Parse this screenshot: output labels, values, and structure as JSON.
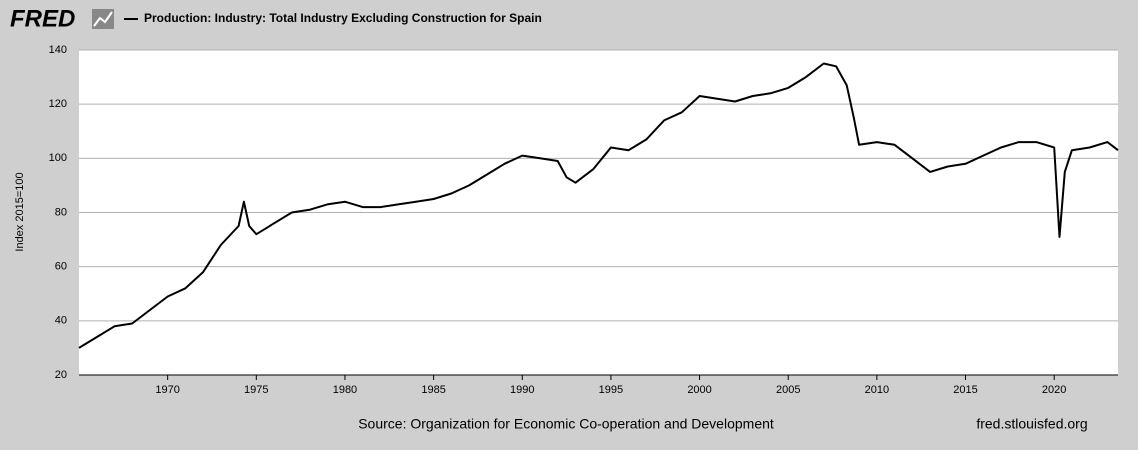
{
  "logo": "FRED",
  "source": "Source: Organization for Economic Co-operation and Development",
  "site": "fred.stlouisfed.org",
  "chart_data": {
    "type": "line",
    "y_label": "Index 2015=100",
    "x": [
      1965,
      1966,
      1967,
      1968,
      1969,
      1970,
      1971,
      1972,
      1973,
      1974,
      1974.3,
      1974.6,
      1975,
      1975.5,
      1976,
      1977,
      1978,
      1979,
      1980,
      1981,
      1982,
      1983,
      1984,
      1985,
      1986,
      1987,
      1988,
      1989,
      1990,
      1991,
      1992,
      1992.5,
      1993,
      1994,
      1995,
      1996,
      1997,
      1998,
      1999,
      2000,
      2001,
      2002,
      2003,
      2004,
      2005,
      2006,
      2007,
      2007.7,
      2008.3,
      2008.7,
      2009,
      2010,
      2011,
      2012,
      2013,
      2014,
      2015,
      2016,
      2017,
      2018,
      2019,
      2020,
      2020.3,
      2020.6,
      2021,
      2022,
      2023,
      2023.6
    ],
    "series": [
      {
        "name": "Production: Industry: Total Industry Excluding Construction for Spain",
        "color": "#000000",
        "values": [
          30,
          34,
          38,
          39,
          44,
          49,
          52,
          58,
          68,
          75,
          84,
          75,
          72,
          74,
          76,
          80,
          81,
          83,
          84,
          82,
          82,
          83,
          84,
          85,
          87,
          90,
          94,
          98,
          101,
          100,
          99,
          93,
          91,
          96,
          104,
          103,
          107,
          114,
          117,
          123,
          122,
          121,
          123,
          124,
          126,
          130,
          135,
          134,
          127,
          115,
          105,
          106,
          105,
          100,
          95,
          97,
          98,
          101,
          104,
          106,
          106,
          104,
          71,
          95,
          103,
          104,
          106,
          103
        ]
      }
    ],
    "xlim": [
      1965,
      2023.6
    ],
    "xticks": [
      1970,
      1975,
      1980,
      1985,
      1990,
      1995,
      2000,
      2005,
      2010,
      2015,
      2020
    ],
    "ylim": [
      20,
      140
    ],
    "yticks": [
      20,
      40,
      60,
      80,
      100,
      120,
      140
    ],
    "grid": true
  }
}
